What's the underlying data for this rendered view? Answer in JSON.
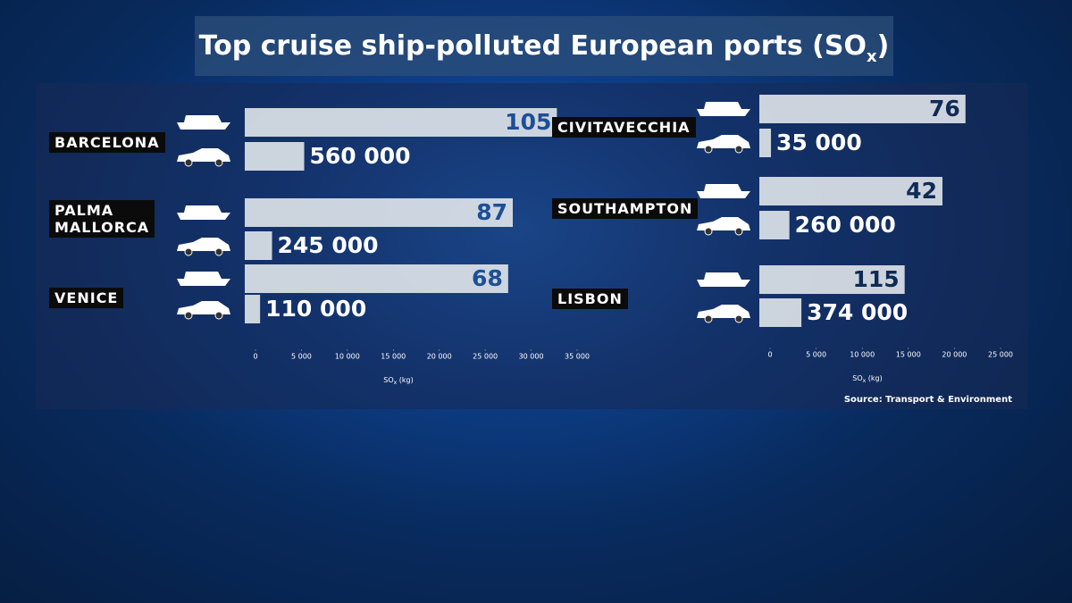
{
  "chart_data": [
    {
      "type": "bar",
      "title": "Top cruise ship-polluted European ports (SO",
      "title_sub": "x",
      "title_end": ")",
      "categories": [
        "BARCELONA",
        "PALMA MALLORCA",
        "VENICE"
      ],
      "series": [
        {
          "color": "#e6eaee",
          "label_color": "#1d4f95",
          "values": [
            32800,
            28000,
            27500
          ],
          "labels": [
            "105",
            "87",
            "68"
          ]
        },
        {
          "color": "#e6eaee",
          "label_color": "#ffffff",
          "values": [
            5300,
            1800,
            500
          ],
          "labels": [
            "560 000",
            "245 000",
            "110 000"
          ]
        }
      ],
      "xlim": [
        0,
        35000
      ],
      "xticks": [
        0,
        {
          "value": 5000,
          "label": "5 000"
        },
        {
          "value": 10000,
          "label": "10 000"
        },
        {
          "value": 15000,
          "label": "15 000"
        },
        {
          "value": 20000,
          "label": "20 000"
        },
        {
          "value": 25000,
          "label": "25 000"
        },
        {
          "value": 30000,
          "label": "30 000"
        },
        {
          "value": 35000,
          "label": "35 000"
        }
      ],
      "xlabel": "SO",
      "xlabel_sub": "x",
      "xlabel_end": " (kg)"
    },
    {
      "type": "bar",
      "categories": [
        "CIVITAVECCHIA",
        "SOUTHAMPTON",
        "LISBON"
      ],
      "series": [
        {
          "color": "#e6eaee",
          "label_color": "#0f2a55",
          "values": [
            21200,
            18700,
            14600
          ],
          "labels": [
            "76",
            "42",
            "115"
          ]
        },
        {
          "color": "#e6eaee",
          "label_color": "#ffffff",
          "values": [
            100,
            2100,
            3400
          ],
          "labels": [
            "35 000",
            "260 000",
            "374 000"
          ]
        }
      ],
      "xlim": [
        0,
        25000
      ],
      "xticks": [
        0,
        {
          "value": 5000,
          "label": "5 000"
        },
        {
          "value": 10000,
          "label": "10 000"
        },
        {
          "value": 15000,
          "label": "15 000"
        },
        {
          "value": 20000,
          "label": "20 000"
        },
        {
          "value": 25000,
          "label": "25 000"
        }
      ],
      "xlabel": "SO",
      "xlabel_sub": "x",
      "xlabel_end": " (kg)",
      "source": "Source: Transport & Environment"
    }
  ]
}
